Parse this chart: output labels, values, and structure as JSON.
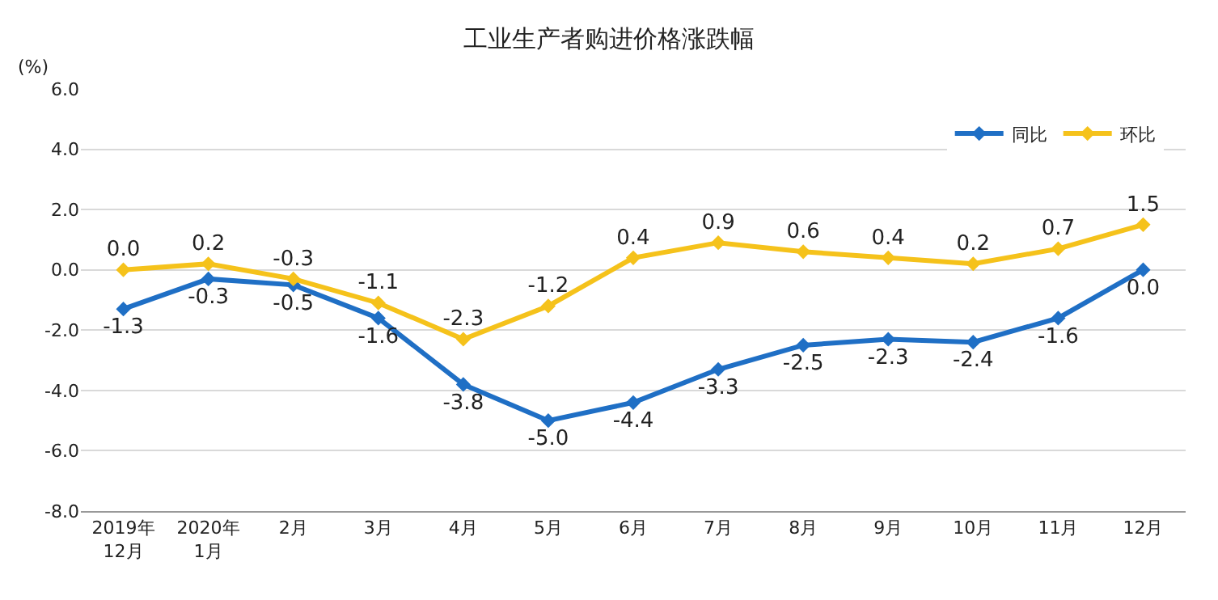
{
  "chart_data": {
    "type": "line",
    "title": "工业生产者购进价格涨跌幅",
    "ylabel": "(%)",
    "categories": [
      "2019年\n12月",
      "2020年\n1月",
      "2月",
      "3月",
      "4月",
      "5月",
      "6月",
      "7月",
      "8月",
      "9月",
      "10月",
      "11月",
      "12月"
    ],
    "series": [
      {
        "name": "同比",
        "color": "#1f6fc5",
        "values": [
          -1.3,
          -0.3,
          -0.5,
          -1.6,
          -3.8,
          -5.0,
          -4.4,
          -3.3,
          -2.5,
          -2.3,
          -2.4,
          -1.6,
          0.0
        ],
        "value_labels": [
          "-1.3",
          "-0.3",
          "-0.5",
          "-1.6",
          "-3.8",
          "-5.0",
          "-4.4",
          "-3.3",
          "-2.5",
          "-2.3",
          "-2.4",
          "-1.6",
          "0.0"
        ]
      },
      {
        "name": "环比",
        "color": "#f5c21b",
        "values": [
          0.0,
          0.2,
          -0.3,
          -1.1,
          -2.3,
          -1.2,
          0.4,
          0.9,
          0.6,
          0.4,
          0.2,
          0.7,
          1.5
        ],
        "value_labels": [
          "0.0",
          "0.2",
          "-0.3",
          "-1.1",
          "-2.3",
          "-1.2",
          "0.4",
          "0.9",
          "0.6",
          "0.4",
          "0.2",
          "0.7",
          "1.5"
        ]
      }
    ],
    "ylim": [
      -8,
      6
    ],
    "yticks": [
      {
        "value": -8,
        "label": "-8.0"
      },
      {
        "value": -6,
        "label": "-6.0"
      },
      {
        "value": -4,
        "label": "-4.0"
      },
      {
        "value": -2,
        "label": "-2.0"
      },
      {
        "value": 0,
        "label": "0.0"
      },
      {
        "value": 2,
        "label": "2.0"
      },
      {
        "value": 4,
        "label": "4.0"
      },
      {
        "value": 6,
        "label": "6.0"
      }
    ],
    "grid": "y",
    "legend": "top right",
    "marker": "diamond",
    "line_style": "solid"
  }
}
